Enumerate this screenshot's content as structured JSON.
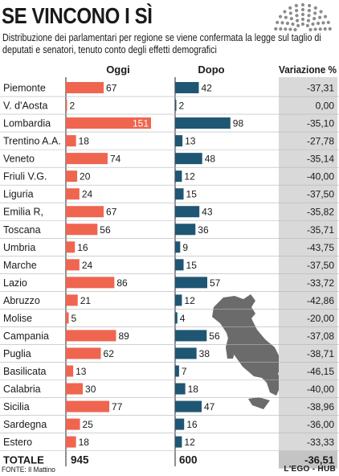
{
  "title": "SE VINCONO I SÌ",
  "subtitle": "Distribuzione dei parlamentari per regione se viene confermata la legge sul taglio di deputati e senatori, tenuto conto degli effetti demografici",
  "source": "FONTE: Il Mattino",
  "brand": "L'EGO - HUB",
  "colors": {
    "oggi": "#ef6550",
    "dopo": "#1f5673",
    "variation_bg": "#d9d9d9",
    "total_bg": "#c4c4c4",
    "map": "#6b6b6b"
  },
  "chart_data": {
    "type": "bar",
    "categories": [
      "Piemonte",
      "V. d'Aosta",
      "Lombardia",
      "Trentino A.A.",
      "Veneto",
      "Friuli V.G.",
      "Liguria",
      "Emilia R,",
      "Toscana",
      "Umbria",
      "Marche",
      "Lazio",
      "Abruzzo",
      "Molise",
      "Campania",
      "Puglia",
      "Basilicata",
      "Calabria",
      "Sicilia",
      "Sardegna",
      "Estero"
    ],
    "series": [
      {
        "name": "Oggi",
        "values": [
          67,
          2,
          151,
          18,
          74,
          20,
          24,
          67,
          56,
          16,
          24,
          86,
          21,
          5,
          89,
          62,
          13,
          30,
          77,
          25,
          18
        ]
      },
      {
        "name": "Dopo",
        "values": [
          42,
          2,
          98,
          13,
          48,
          12,
          15,
          43,
          36,
          9,
          15,
          57,
          12,
          4,
          56,
          38,
          7,
          18,
          47,
          16,
          12
        ]
      }
    ],
    "variation_header": "Variazione %",
    "variation": [
      "-37,31",
      "0,00",
      "-35,10",
      "-27,78",
      "-35,14",
      "-40,00",
      "-37,50",
      "-35,82",
      "-35,71",
      "-43,75",
      "-37,50",
      "-33,72",
      "-42,86",
      "-20,00",
      "-37,08",
      "-38,71",
      "-46,15",
      "-40,00",
      "-38,96",
      "-36,00",
      "-33,33"
    ],
    "totals": {
      "label": "TOTALE",
      "oggi": "945",
      "dopo": "600",
      "variation": "-36,51"
    },
    "scale_max": 151
  }
}
